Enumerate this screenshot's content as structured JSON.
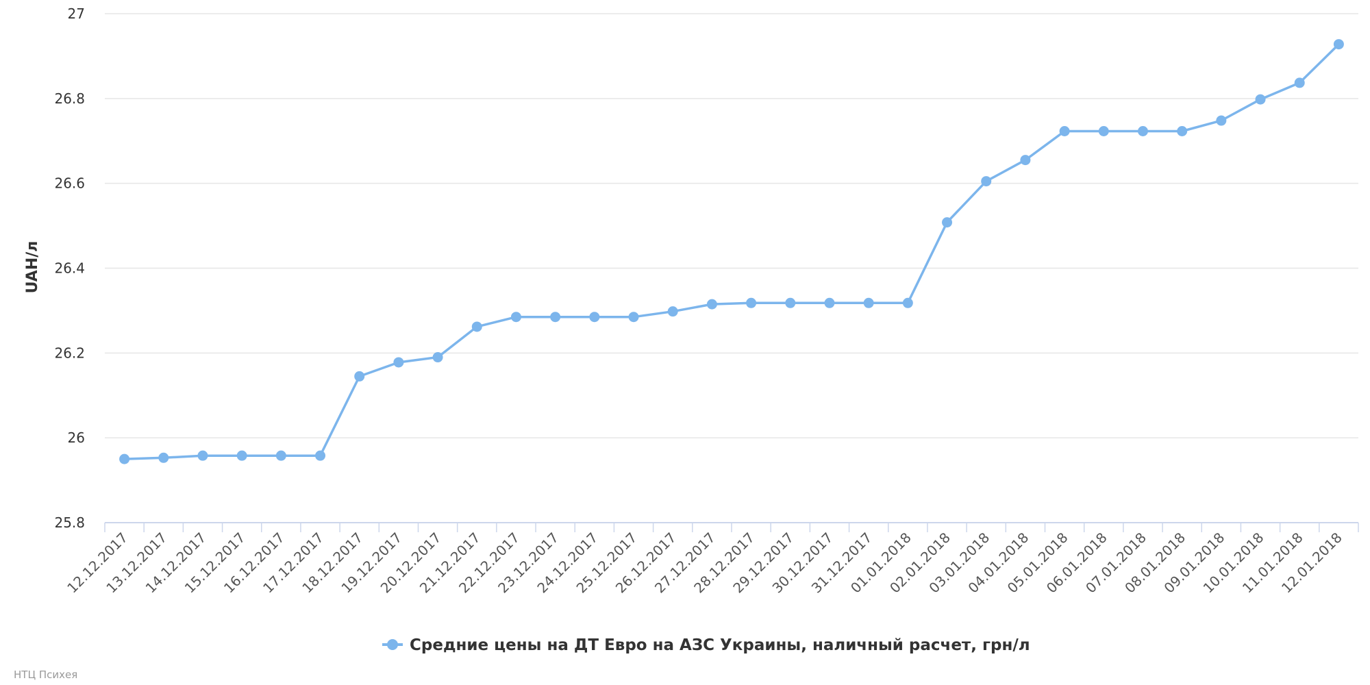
{
  "chart_data": {
    "type": "line",
    "ylabel": "UAH/л",
    "xlabel": "",
    "ylim": [
      25.8,
      27
    ],
    "yticks": [
      25.8,
      26,
      26.2,
      26.4,
      26.6,
      26.8,
      27
    ],
    "ytick_labels": [
      "25.8",
      "26",
      "26.2",
      "26.4",
      "26.6",
      "26.8",
      "27"
    ],
    "grid": true,
    "legend_position": "bottom-center",
    "categories": [
      "12.12.2017",
      "13.12.2017",
      "14.12.2017",
      "15.12.2017",
      "16.12.2017",
      "17.12.2017",
      "18.12.2017",
      "19.12.2017",
      "20.12.2017",
      "21.12.2017",
      "22.12.2017",
      "23.12.2017",
      "24.12.2017",
      "25.12.2017",
      "26.12.2017",
      "27.12.2017",
      "28.12.2017",
      "29.12.2017",
      "30.12.2017",
      "31.12.2017",
      "01.01.2018",
      "02.01.2018",
      "03.01.2018",
      "04.01.2018",
      "05.01.2018",
      "06.01.2018",
      "07.01.2018",
      "08.01.2018",
      "09.01.2018",
      "10.01.2018",
      "11.01.2018",
      "12.01.2018"
    ],
    "series": [
      {
        "name": "Средние цены на ДТ Евро на АЗС Украины, наличный расчет, грн/л",
        "color": "#7cb5ec",
        "values": [
          25.95,
          25.953,
          25.958,
          25.958,
          25.958,
          25.958,
          26.145,
          26.178,
          26.19,
          26.262,
          26.285,
          26.285,
          26.285,
          26.285,
          26.298,
          26.315,
          26.318,
          26.318,
          26.318,
          26.318,
          26.318,
          26.508,
          26.605,
          26.655,
          26.723,
          26.723,
          26.723,
          26.723,
          26.748,
          26.798,
          26.837,
          26.928
        ]
      }
    ]
  },
  "credits": "НТЦ Психея",
  "colors": {
    "series": "#7cb5ec",
    "grid": "#e6e6e6",
    "axis": "#ccd6eb"
  }
}
